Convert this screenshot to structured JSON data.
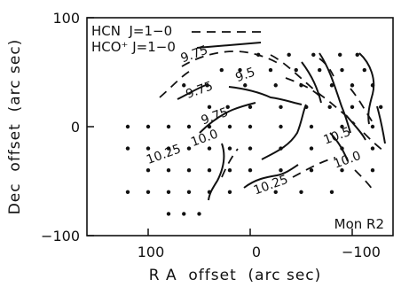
{
  "chart_data": {
    "type": "contour",
    "title": "",
    "xlabel": "R A  offset  (arc sec)",
    "ylabel": "Dec  offset  (arc sec)",
    "x_reversed": true,
    "xlim": [
      160,
      -140
    ],
    "ylim": [
      -100,
      100
    ],
    "x_ticks": [
      100,
      0,
      -100
    ],
    "x_tick_labels": [
      "100",
      "0",
      "−100"
    ],
    "y_ticks": [
      100,
      0,
      -100
    ],
    "y_tick_labels": [
      "100",
      "0",
      "−100"
    ],
    "annotation": "Mon R2",
    "legend": [
      {
        "label": "HCN  J=1−0",
        "line": "dashed"
      },
      {
        "label": "HCO⁺ J=1−0",
        "line": "solid"
      }
    ],
    "contour_labels": [
      {
        "text": "9.75",
        "x": 55,
        "y": 67
      },
      {
        "text": "9.75",
        "x": 50,
        "y": 34
      },
      {
        "text": "9.5",
        "x": 5,
        "y": 48
      },
      {
        "text": "9.75",
        "x": 35,
        "y": 10
      },
      {
        "text": "10.0",
        "x": 45,
        "y": -10
      },
      {
        "text": "10.25",
        "x": 85,
        "y": -25
      },
      {
        "text": "10.5",
        "x": -85,
        "y": -8
      },
      {
        "text": "10.0",
        "x": -95,
        "y": -30
      },
      {
        "text": "10.25",
        "x": -20,
        "y": -53
      }
    ],
    "sample_points": [
      [
        -8,
        66
      ],
      [
        -38,
        66
      ],
      [
        -62,
        66
      ],
      [
        -88,
        66
      ],
      [
        -105,
        66
      ],
      [
        28,
        52
      ],
      [
        10,
        52
      ],
      [
        -20,
        52
      ],
      [
        -45,
        52
      ],
      [
        -68,
        52
      ],
      [
        -90,
        52
      ],
      [
        -112,
        52
      ],
      [
        65,
        38
      ],
      [
        42,
        38
      ],
      [
        5,
        38
      ],
      [
        -25,
        38
      ],
      [
        -50,
        38
      ],
      [
        -80,
        38
      ],
      [
        -100,
        38
      ],
      [
        -120,
        38
      ],
      [
        40,
        18
      ],
      [
        22,
        18
      ],
      [
        0,
        18
      ],
      [
        -30,
        18
      ],
      [
        -55,
        18
      ],
      [
        -78,
        18
      ],
      [
        -100,
        18
      ],
      [
        -128,
        18
      ],
      [
        120,
        0
      ],
      [
        100,
        0
      ],
      [
        80,
        0
      ],
      [
        60,
        0
      ],
      [
        40,
        0
      ],
      [
        20,
        0
      ],
      [
        0,
        0
      ],
      [
        -30,
        0
      ],
      [
        -60,
        0
      ],
      [
        -90,
        0
      ],
      [
        -120,
        0
      ],
      [
        120,
        -20
      ],
      [
        100,
        -20
      ],
      [
        80,
        -20
      ],
      [
        60,
        -20
      ],
      [
        40,
        -20
      ],
      [
        20,
        -20
      ],
      [
        0,
        -20
      ],
      [
        -30,
        -20
      ],
      [
        -60,
        -20
      ],
      [
        -90,
        -20
      ],
      [
        -120,
        -20
      ],
      [
        100,
        -40
      ],
      [
        80,
        -40
      ],
      [
        60,
        -40
      ],
      [
        40,
        -40
      ],
      [
        20,
        -40
      ],
      [
        0,
        -40
      ],
      [
        -30,
        -40
      ],
      [
        -60,
        -40
      ],
      [
        -90,
        -40
      ],
      [
        -120,
        -40
      ],
      [
        120,
        -60
      ],
      [
        100,
        -60
      ],
      [
        80,
        -60
      ],
      [
        60,
        -60
      ],
      [
        40,
        -60
      ],
      [
        20,
        -60
      ],
      [
        -25,
        -60
      ],
      [
        -50,
        -60
      ],
      [
        -80,
        -60
      ],
      [
        80,
        -80
      ],
      [
        65,
        -80
      ],
      [
        50,
        -80
      ]
    ]
  }
}
